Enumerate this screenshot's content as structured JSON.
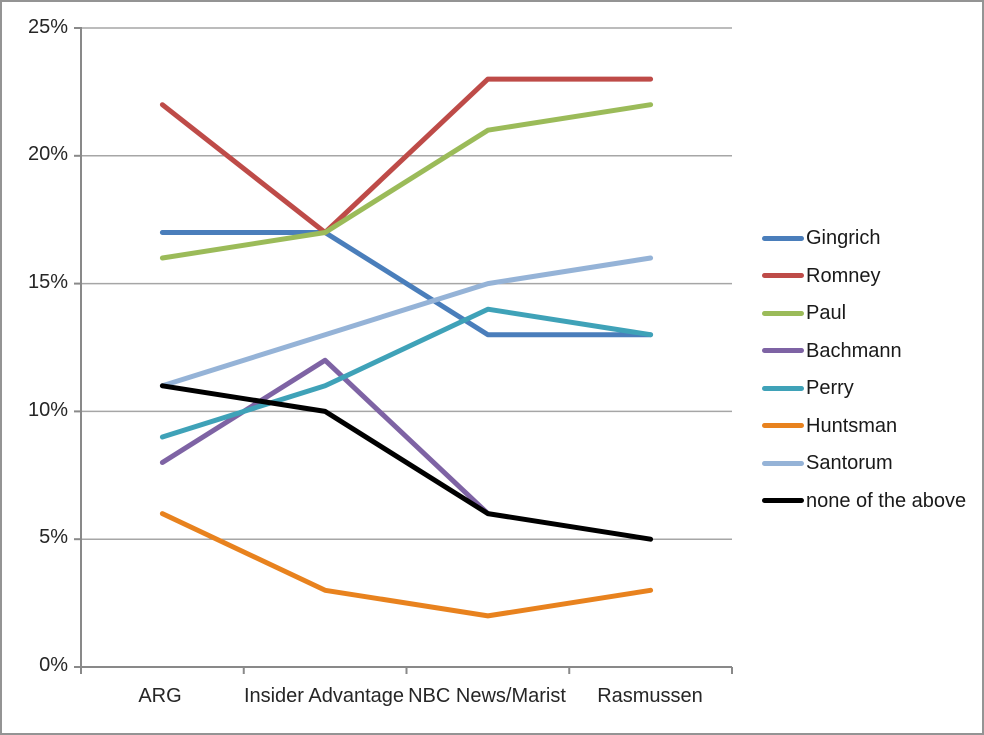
{
  "chart_data": {
    "type": "line",
    "title": "",
    "categories": [
      "ARG",
      "Insider Advantage",
      "NBC News/Marist",
      "Rasmussen"
    ],
    "y_ticks": [
      {
        "label": "0%",
        "value": 0
      },
      {
        "label": "5%",
        "value": 5
      },
      {
        "label": "10%",
        "value": 10
      },
      {
        "label": "15%",
        "value": 15
      },
      {
        "label": "20%",
        "value": 20
      },
      {
        "label": "25%",
        "value": 25
      }
    ],
    "ylim": [
      0,
      25
    ],
    "grid": true,
    "legend_position": "right",
    "colors": {
      "gridline": "#A6A6A6",
      "axis": "#898989"
    },
    "series": [
      {
        "name": "Gingrich",
        "color": "#4A7EBB",
        "values": [
          17,
          17,
          13,
          13
        ]
      },
      {
        "name": "Romney",
        "color": "#BE4B48",
        "values": [
          22,
          17,
          23,
          23
        ]
      },
      {
        "name": "Paul",
        "color": "#9BBB59",
        "values": [
          16,
          17,
          21,
          22
        ]
      },
      {
        "name": "Bachmann",
        "color": "#7E63A4",
        "values": [
          8,
          12,
          6,
          null
        ]
      },
      {
        "name": "Perry",
        "color": "#3FA2B8",
        "values": [
          9,
          11,
          14,
          13
        ]
      },
      {
        "name": "Huntsman",
        "color": "#E8821E",
        "values": [
          6,
          3,
          2,
          3
        ]
      },
      {
        "name": "Santorum",
        "color": "#95B3D7",
        "values": [
          11,
          13,
          15,
          16
        ]
      },
      {
        "name": "none of the above",
        "color": "#000000",
        "values": [
          11,
          10,
          6,
          5
        ]
      }
    ]
  }
}
